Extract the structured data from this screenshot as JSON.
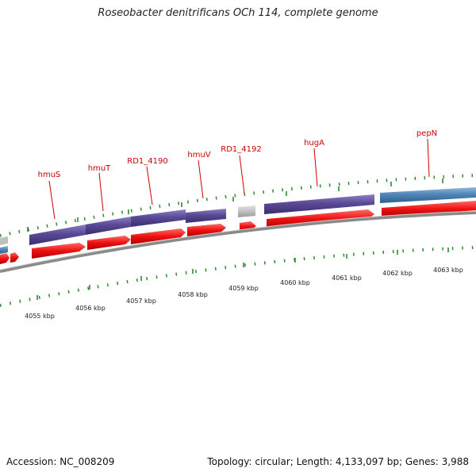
{
  "title": "Roseobacter denitrificans OCh 114, complete genome",
  "footer": {
    "accession": "Accession: NC_008209",
    "topology": "Topology: circular; Length: 4,133,097 bp; Genes: 3,988"
  },
  "colors": {
    "background": "#ffffff",
    "gene_label": "#cc0000",
    "forward_cds": "#5a4a96",
    "other_feature": "#4f86b8",
    "reverse_cds": "#ee1111",
    "rna_feature": "#bfbfbf",
    "backbone": "#8a8a8a",
    "tick": "#2e8b2e"
  },
  "gene_labels": [
    {
      "name": "hmuS"
    },
    {
      "name": "hmuT"
    },
    {
      "name": "RD1_4190"
    },
    {
      "name": "hmuV"
    },
    {
      "name": "RD1_4192"
    },
    {
      "name": "hugA"
    },
    {
      "name": "pepN"
    }
  ],
  "scale_labels": [
    {
      "text": "4055 kbp"
    },
    {
      "text": "4056 kbp"
    },
    {
      "text": "4057 kbp"
    },
    {
      "text": "4058 kbp"
    },
    {
      "text": "4059 kbp"
    },
    {
      "text": "4060 kbp"
    },
    {
      "text": "4061 kbp"
    },
    {
      "text": "4062 kbp"
    },
    {
      "text": "4063 kbp"
    }
  ]
}
